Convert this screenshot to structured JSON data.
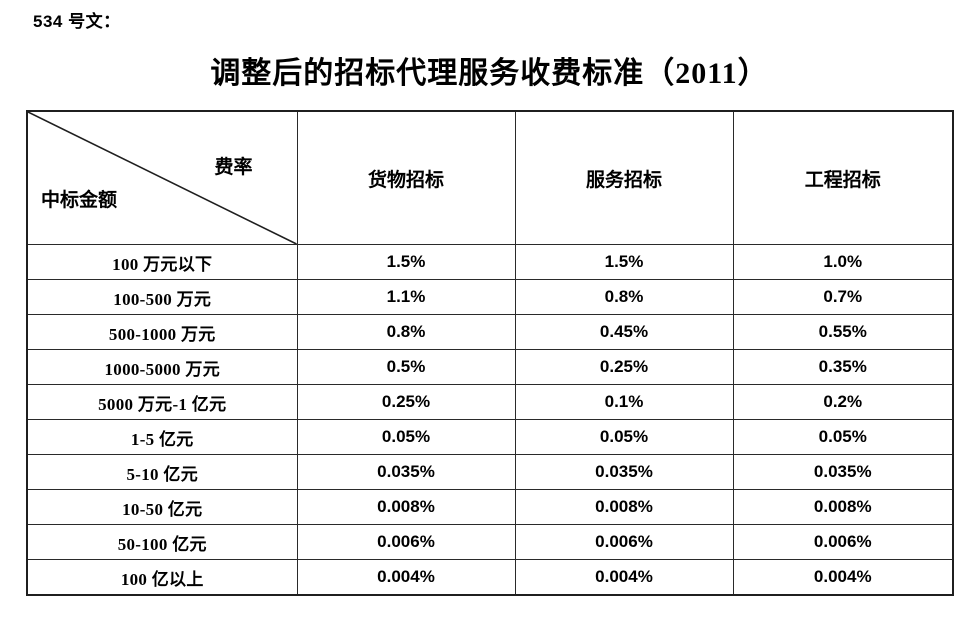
{
  "doc_label": "534 号文：",
  "title": "调整后的招标代理服务收费标准（2011）",
  "colors": {
    "background": "#ffffff",
    "text": "#000000",
    "table_border": "#1f1f1f"
  },
  "table": {
    "corner": {
      "top_right": "费率",
      "bottom_left": "中标金额"
    },
    "columns": [
      "货物招标",
      "服务招标",
      "工程招标"
    ],
    "rows": [
      {
        "label": "100 万元以下",
        "values": [
          "1.5%",
          "1.5%",
          "1.0%"
        ]
      },
      {
        "label": "100-500 万元",
        "values": [
          "1.1%",
          "0.8%",
          "0.7%"
        ]
      },
      {
        "label": "500-1000 万元",
        "values": [
          "0.8%",
          "0.45%",
          "0.55%"
        ]
      },
      {
        "label": "1000-5000 万元",
        "values": [
          "0.5%",
          "0.25%",
          "0.35%"
        ]
      },
      {
        "label": "5000 万元-1 亿元",
        "values": [
          "0.25%",
          "0.1%",
          "0.2%"
        ]
      },
      {
        "label": "1-5 亿元",
        "values": [
          "0.05%",
          "0.05%",
          "0.05%"
        ]
      },
      {
        "label": "5-10 亿元",
        "values": [
          "0.035%",
          "0.035%",
          "0.035%"
        ]
      },
      {
        "label": "10-50 亿元",
        "values": [
          "0.008%",
          "0.008%",
          "0.008%"
        ]
      },
      {
        "label": "50-100 亿元",
        "values": [
          "0.006%",
          "0.006%",
          "0.006%"
        ]
      },
      {
        "label": "100 亿以上",
        "values": [
          "0.004%",
          "0.004%",
          "0.004%"
        ]
      }
    ]
  }
}
